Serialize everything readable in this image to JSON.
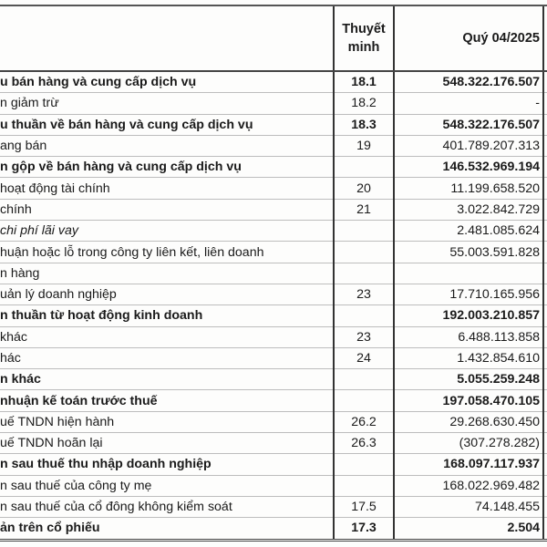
{
  "header": {
    "note_label_line1": "Thuyết",
    "note_label_line2": "minh",
    "period_label": "Quý 04/2025"
  },
  "rows": [
    {
      "label": "u bán hàng và cung cấp dịch vụ",
      "note": "18.1",
      "value": "548.322.176.507",
      "style": "bold"
    },
    {
      "label": "n giảm trừ",
      "note": "18.2",
      "value": "-",
      "style": ""
    },
    {
      "label": "u thuần về bán hàng và cung cấp dịch vụ",
      "note": "18.3",
      "value": "548.322.176.507",
      "style": "bold"
    },
    {
      "label": "ang bán",
      "note": "19",
      "value": "401.789.207.313",
      "style": ""
    },
    {
      "label": "n gộp về bán hàng và cung cấp dịch vụ",
      "note": "",
      "value": "146.532.969.194",
      "style": "bold"
    },
    {
      "label": " hoạt động tài chính",
      "note": "20",
      "value": "11.199.658.520",
      "style": ""
    },
    {
      "label": " chính",
      "note": "21",
      "value": "3.022.842.729",
      "style": ""
    },
    {
      "label": " chi phí lãi vay",
      "note": "",
      "value": "2.481.085.624",
      "style": "italic"
    },
    {
      "label": "huận hoặc lỗ trong công ty liên kết, liên doanh",
      "note": "",
      "value": "55.003.591.828",
      "style": ""
    },
    {
      "label": "n hàng",
      "note": "",
      "value": "",
      "style": ""
    },
    {
      "label": "uản lý doanh nghiệp",
      "note": "23",
      "value": "17.710.165.956",
      "style": ""
    },
    {
      "label": "n thuần từ hoạt động kinh doanh",
      "note": "",
      "value": "192.003.210.857",
      "style": "bold"
    },
    {
      "label": " khác",
      "note": "23",
      "value": "6.488.113.858",
      "style": ""
    },
    {
      "label": "hác",
      "note": "24",
      "value": "1.432.854.610",
      "style": ""
    },
    {
      "label": "n khác",
      "note": "",
      "value": "5.055.259.248",
      "style": "bold"
    },
    {
      "label": " nhuận kế toán trước thuế",
      "note": "",
      "value": "197.058.470.105",
      "style": "bold"
    },
    {
      "label": "uế TNDN hiện hành",
      "note": "26.2",
      "value": "29.268.630.450",
      "style": ""
    },
    {
      "label": "uế TNDN hoãn lại",
      "note": "26.3",
      "value": "(307.278.282)",
      "style": ""
    },
    {
      "label": "n sau thuế thu nhập doanh nghiệp",
      "note": "",
      "value": "168.097.117.937",
      "style": "bold"
    },
    {
      "label": "n sau thuế của công ty mẹ",
      "note": "",
      "value": "168.022.969.482",
      "style": ""
    },
    {
      "label": "n sau thuế của cổ đông không kiểm soát",
      "note": "17.5",
      "value": "74.148.455",
      "style": ""
    },
    {
      "label": "ản trên cổ phiếu",
      "note": "17.3",
      "value": "2.504",
      "style": "bold"
    }
  ]
}
